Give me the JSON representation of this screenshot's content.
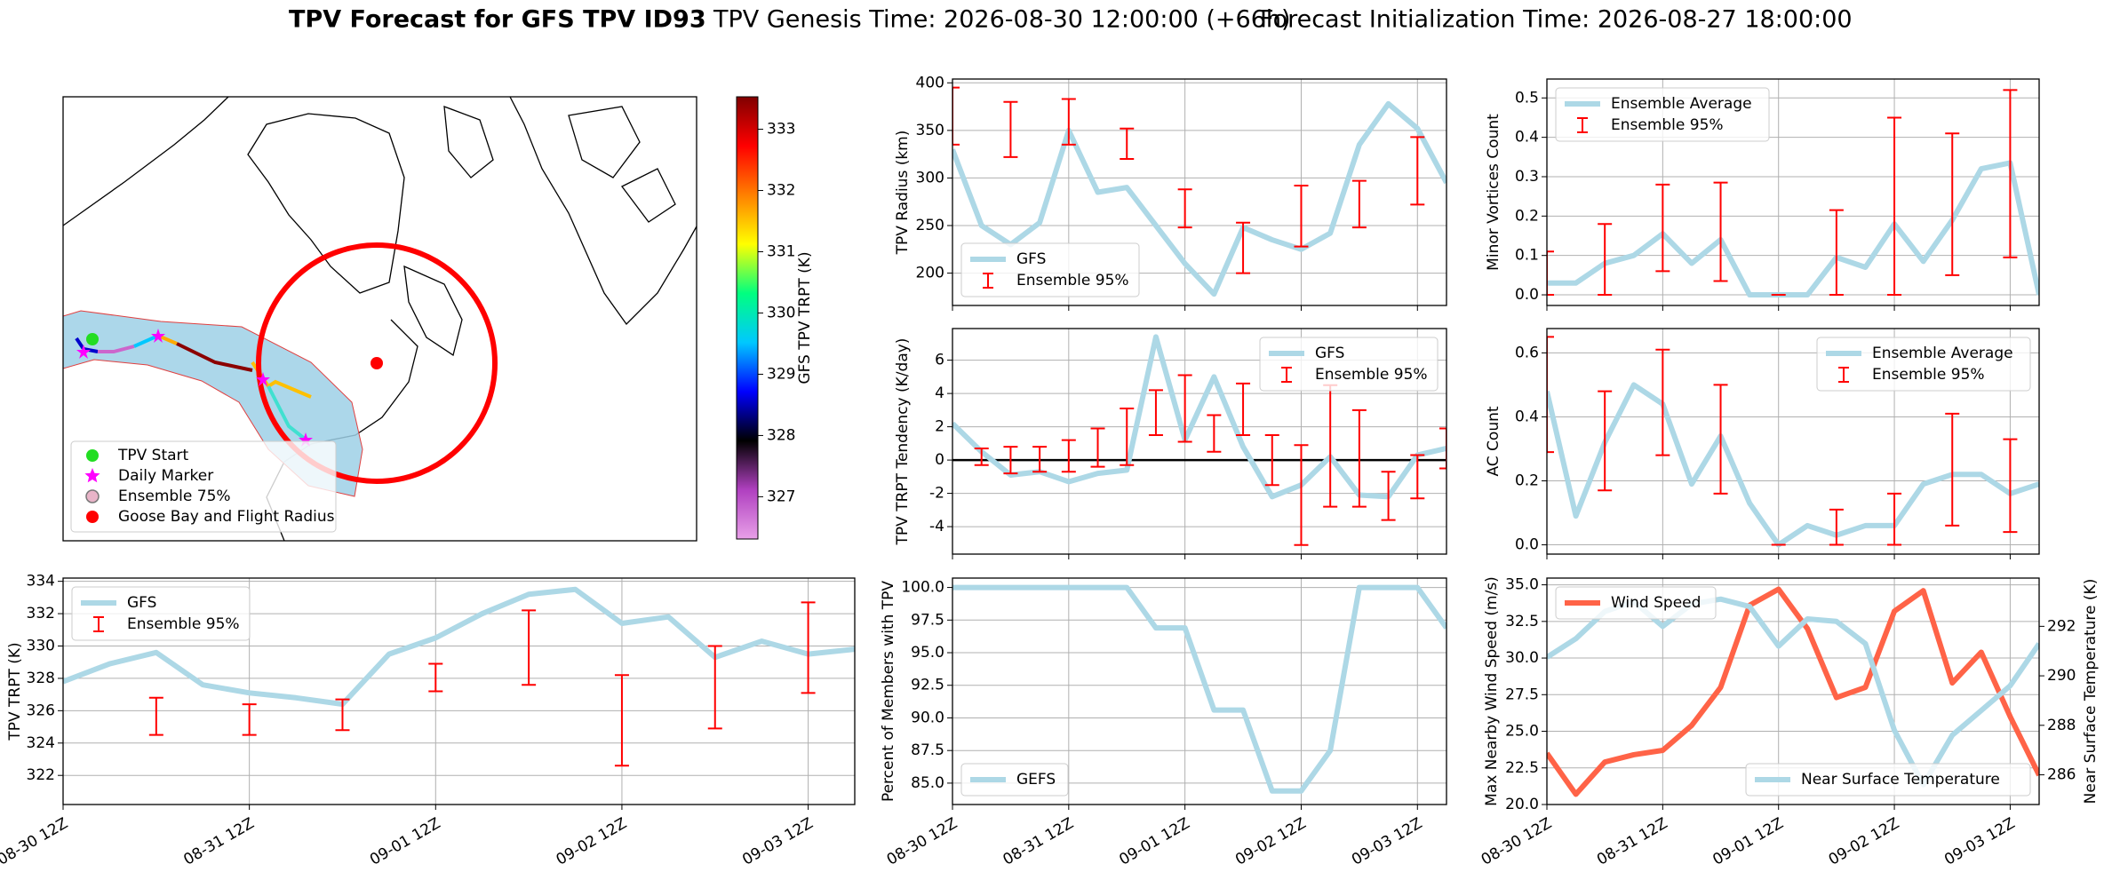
{
  "figure_title": {
    "main": "TPV Forecast for GFS TPV ID93",
    "genesis": "TPV Genesis Time: 2026-08-30 12:00:00 (+66h)",
    "init": "Forecast Initialization Time: 2026-08-27 18:00:00"
  },
  "map": {
    "legend": [
      {
        "label": "TPV Start",
        "color": "#22dd22",
        "marker": "o"
      },
      {
        "label": "Daily Marker",
        "color": "#ff00ff",
        "marker": "*"
      },
      {
        "label": "Ensemble 75%",
        "color": "#e8b4c8",
        "marker": "o"
      },
      {
        "label": "Goose Bay and Flight Radius",
        "color": "#ff0000",
        "marker": "o"
      }
    ],
    "colorbar": {
      "label": "GFS TPV TRPT (K)",
      "lim": [
        326.31,
        333.53
      ],
      "ticks": [
        327,
        328,
        329,
        330,
        331,
        332,
        333
      ],
      "colormap": [
        "#e8a0e8",
        "#b040c0",
        "#000000",
        "#0000ff",
        "#00c8ff",
        "#00ff80",
        "#ffff00",
        "#ff8000",
        "#ff0000",
        "#800000"
      ]
    }
  },
  "x_categories": [
    "08-30 12Z",
    null,
    null,
    null,
    "08-31 12Z",
    null,
    null,
    null,
    "09-01 12Z",
    null,
    null,
    null,
    "09-02 12Z",
    null,
    null,
    null,
    "09-03 12Z",
    null
  ],
  "chart_data": [
    {
      "type": "line",
      "ylabel": "TPV Radius (km)",
      "ylim": [
        166,
        404
      ],
      "yticks": [
        200,
        250,
        300,
        350,
        400
      ],
      "grid": true,
      "xlabels": false,
      "legend": "lower left",
      "series": [
        {
          "name": "GFS",
          "color": "lightblue",
          "values": [
            330,
            250,
            230,
            253,
            350,
            285,
            290,
            250,
            210,
            178,
            248,
            235,
            225,
            242,
            335,
            378,
            352,
            295
          ]
        },
        {
          "name": "Ensemble 95%",
          "type": "errorbar",
          "color": "red",
          "low": [
            335,
            null,
            322,
            null,
            335,
            null,
            320,
            null,
            248,
            null,
            200,
            null,
            228,
            null,
            248,
            null,
            272,
            null
          ],
          "high": [
            395,
            null,
            380,
            null,
            383,
            null,
            352,
            null,
            288,
            null,
            253,
            null,
            292,
            null,
            297,
            null,
            343,
            null
          ]
        }
      ]
    },
    {
      "type": "line",
      "ylabel": "Minor Vortices Count",
      "ylim": [
        -0.027,
        0.548
      ],
      "yticks": [
        {
          "value": 0,
          "label": "0.0"
        },
        0.1,
        0.2,
        0.3,
        0.4,
        0.5
      ],
      "grid": true,
      "xlabels": false,
      "legend": "upper left",
      "series": [
        {
          "name": "Ensemble Average",
          "color": "lightblue",
          "values": [
            0.03,
            0.03,
            0.08,
            0.1,
            0.155,
            0.08,
            0.14,
            0,
            0,
            0,
            0.095,
            0.07,
            0.18,
            0.085,
            0.19,
            0.32,
            0.335,
            0
          ]
        },
        {
          "name": "Ensemble 95%",
          "type": "errorbar",
          "color": "red",
          "low": [
            0,
            null,
            0,
            null,
            0.06,
            null,
            0.035,
            null,
            0,
            null,
            0,
            null,
            0,
            null,
            0.05,
            null,
            0.095,
            null
          ],
          "high": [
            0.11,
            null,
            0.18,
            null,
            0.28,
            null,
            0.285,
            null,
            0,
            null,
            0.215,
            null,
            0.45,
            null,
            0.41,
            null,
            0.52,
            null
          ]
        }
      ]
    },
    {
      "type": "line",
      "ylabel": "TPV TRPT Tendency (K/day)",
      "ylim": [
        -5.65,
        7.9
      ],
      "yticks": [
        -4,
        -2,
        0,
        2,
        4,
        6
      ],
      "grid": true,
      "xlabels": false,
      "legend": "upper right",
      "hline": 0,
      "series": [
        {
          "name": "GFS",
          "color": "lightblue",
          "values": [
            2.2,
            0.5,
            -0.9,
            -0.7,
            -1.3,
            -0.8,
            -0.6,
            7.4,
            1.2,
            5.0,
            0.8,
            -2.2,
            -1.5,
            0.2,
            -2.1,
            -2.2,
            0.3,
            0.7
          ]
        },
        {
          "name": "Ensemble 95%",
          "type": "errorbar",
          "color": "red",
          "low": [
            null,
            -0.3,
            -0.8,
            -0.7,
            -0.7,
            -0.4,
            -0.3,
            1.5,
            1.1,
            0.5,
            1.5,
            -1.5,
            -5.1,
            -2.8,
            -2.8,
            -3.6,
            -2.3,
            -0.5
          ],
          "high": [
            null,
            0.7,
            0.8,
            0.8,
            1.2,
            1.9,
            3.1,
            4.2,
            5.1,
            2.7,
            4.6,
            1.5,
            0.9,
            4.5,
            3.0,
            -0.7,
            0.3,
            1.9
          ]
        }
      ]
    },
    {
      "type": "line",
      "ylabel": "AC Count",
      "ylim": [
        -0.029,
        0.676
      ],
      "yticks": [
        {
          "value": 0,
          "label": "0.0"
        },
        0.2,
        0.4,
        0.6
      ],
      "grid": true,
      "xlabels": false,
      "legend": "upper right",
      "series": [
        {
          "name": "Ensemble Average",
          "color": "lightblue",
          "values": [
            0.48,
            0.09,
            0.32,
            0.5,
            0.44,
            0.19,
            0.34,
            0.13,
            0,
            0.06,
            0.03,
            0.06,
            0.06,
            0.19,
            0.22,
            0.22,
            0.16,
            0.19
          ]
        },
        {
          "name": "Ensemble 95%",
          "type": "errorbar",
          "color": "red",
          "low": [
            0.29,
            null,
            0.17,
            null,
            0.28,
            null,
            0.16,
            null,
            0,
            null,
            0,
            null,
            0,
            null,
            0.06,
            null,
            0.04,
            null
          ],
          "high": [
            0.65,
            null,
            0.48,
            null,
            0.61,
            null,
            0.5,
            null,
            0,
            null,
            0.11,
            null,
            0.16,
            null,
            0.41,
            null,
            0.33,
            null
          ]
        }
      ]
    },
    {
      "type": "line",
      "ylabel": "TPV TRPT (K)",
      "ylim": [
        320.2,
        334.2
      ],
      "yticks": [
        322,
        324,
        326,
        328,
        330,
        332,
        334
      ],
      "grid": true,
      "xlabels": true,
      "legend": "upper left",
      "series": [
        {
          "name": "GFS",
          "color": "lightblue",
          "values": [
            327.8,
            328.9,
            329.6,
            327.6,
            327.1,
            326.8,
            326.4,
            329.5,
            330.5,
            332.0,
            333.2,
            333.5,
            331.4,
            331.8,
            329.3,
            330.3,
            329.5,
            329.8
          ]
        },
        {
          "name": "Ensemble 95%",
          "type": "errorbar",
          "color": "red",
          "low": [
            null,
            null,
            324.5,
            null,
            324.5,
            null,
            324.8,
            null,
            327.2,
            null,
            327.6,
            null,
            322.6,
            null,
            324.9,
            null,
            327.1,
            null
          ],
          "high": [
            null,
            null,
            326.8,
            null,
            326.4,
            null,
            326.7,
            null,
            328.9,
            null,
            332.2,
            null,
            328.2,
            null,
            330.0,
            null,
            332.7,
            null
          ]
        }
      ]
    },
    {
      "type": "line",
      "ylabel": "Percent of Members with TPV",
      "ylim": [
        83.36,
        100.72
      ],
      "yticks": [
        {
          "value": 85,
          "label": "85.0"
        },
        87.5,
        {
          "value": 90,
          "label": "90.0"
        },
        92.5,
        {
          "value": 95,
          "label": "95.0"
        },
        97.5,
        {
          "value": 100,
          "label": "100.0"
        }
      ],
      "grid": true,
      "xlabels": true,
      "legend": "lower left",
      "series": [
        {
          "name": "GEFS",
          "color": "lightblue",
          "values": [
            100,
            100,
            100,
            100,
            100,
            100,
            100,
            96.9,
            96.9,
            90.6,
            90.6,
            84.4,
            84.4,
            87.5,
            100,
            100,
            100,
            96.9
          ]
        }
      ]
    },
    {
      "type": "line",
      "ylabel": "Max Nearby Wind Speed (m/s)",
      "y2label": "Near Surface Temperature (K)",
      "ylabel_color": "tomato",
      "y2_color": "royalblue",
      "ylim": [
        20,
        35.46
      ],
      "yticks": [
        {
          "value": 20,
          "label": "20.0"
        },
        22.5,
        {
          "value": 25,
          "label": "25.0"
        },
        27.5,
        {
          "value": 30,
          "label": "30.0"
        },
        32.5,
        {
          "value": 35,
          "label": "35.0"
        }
      ],
      "y2lim": [
        284.8,
        293.95
      ],
      "y2ticks": [
        286,
        288,
        290,
        292
      ],
      "grid": true,
      "xlabels": true,
      "legend": "upper left",
      "legend2": "lower right",
      "series": [
        {
          "name": "Wind Speed",
          "color": "tomato",
          "values": [
            23.5,
            20.7,
            22.9,
            23.4,
            23.7,
            25.4,
            28,
            33.6,
            34.7,
            32,
            27.3,
            28,
            33.2,
            34.6,
            28.3,
            30.4,
            26,
            22
          ]
        },
        {
          "name": "Near Surface Temperature",
          "color": "lightblue",
          "axis": "y2",
          "values": [
            290.75,
            291.5,
            292.6,
            293,
            292,
            292.9,
            293.1,
            292.8,
            291.2,
            292.3,
            292.2,
            291.3,
            287.8,
            285.6,
            287.6,
            288.6,
            289.6,
            291.3
          ]
        }
      ]
    }
  ]
}
